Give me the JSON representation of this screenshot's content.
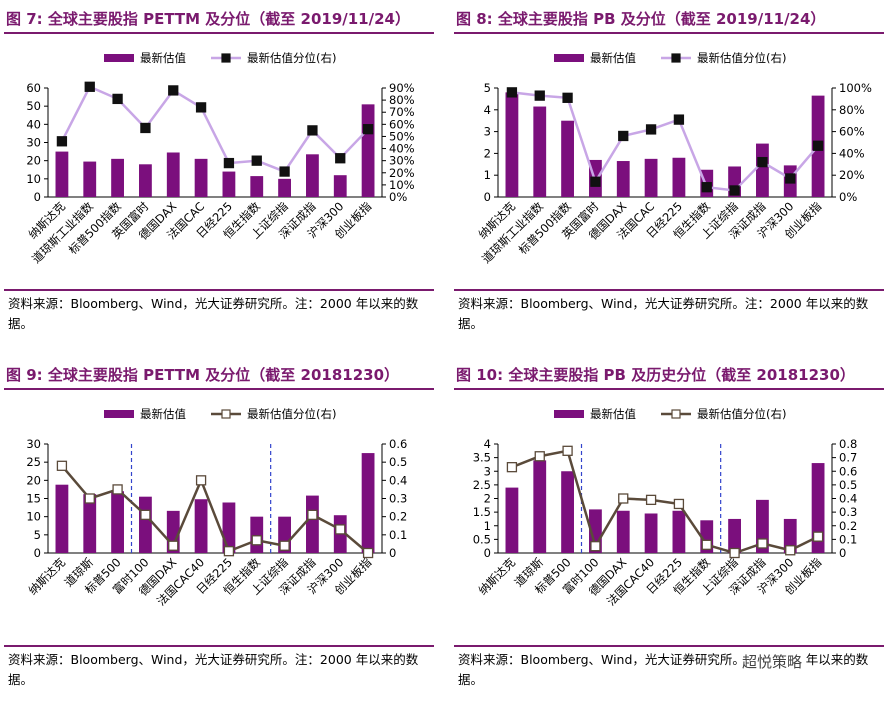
{
  "colors": {
    "accent": "#7a1a6e",
    "bar": "#7b0f7d",
    "line_light": "#c8a6e6",
    "line_dark": "#5a4a3a"
  },
  "watermark": "超悦策略",
  "panels": [
    {
      "title": "图 7: 全球主要股指 PETTM 及分位（截至 2019/11/24）",
      "source": "资料来源：Bloomberg、Wind，光大证券研究所。注：2000 年以来的数据。",
      "legend_bar": "最新估值",
      "legend_line": "最新估值分位(右)"
    },
    {
      "title": "图 8: 全球主要股指 PB 及分位（截至 2019/11/24）",
      "source": "资料来源：Bloomberg、Wind，光大证券研究所。注：2000 年以来的数据。",
      "legend_bar": "最新估值",
      "legend_line": "最新估值分位(右)"
    },
    {
      "title": "图 9: 全球主要股指 PETTM 及分位（截至 20181230）",
      "source": "资料来源：Bloomberg、Wind，光大证券研究所。注：2000 年以来的数据。",
      "legend_bar": "最新估值",
      "legend_line": "最新估值分位(右)"
    },
    {
      "title": "图 10: 全球主要股指 PB 及历史分位（截至 20181230）",
      "source": "资料来源：Bloomberg、Wind，光大证券研究所。注：2000 年以来的数据。",
      "legend_bar": "最新估值",
      "legend_line": "最新估值分位(右)"
    }
  ],
  "chart_data": [
    {
      "type": "bar",
      "categories": [
        "纳斯达克",
        "道琼斯工业指数",
        "标普500指数",
        "英国富时",
        "德国DAX",
        "法国CAC",
        "日经225",
        "恒生指数",
        "上证综指",
        "深证成指",
        "沪深300",
        "创业板指"
      ],
      "series": [
        {
          "name": "最新估值",
          "axis": "left",
          "values": [
            25,
            19.5,
            21,
            18,
            24.5,
            21,
            14,
            11.5,
            10,
            23.5,
            12,
            51
          ]
        },
        {
          "name": "最新估值分位(右)",
          "axis": "right",
          "type": "line",
          "values": [
            0.46,
            0.91,
            0.81,
            0.57,
            0.88,
            0.74,
            0.28,
            0.3,
            0.21,
            0.55,
            0.32,
            0.56
          ]
        }
      ],
      "ylim": [
        0,
        60
      ],
      "yticks": [
        0,
        10,
        20,
        30,
        40,
        50,
        60
      ],
      "y2lim": [
        0,
        0.9
      ],
      "y2ticks": [
        "0%",
        "10%",
        "20%",
        "30%",
        "40%",
        "50%",
        "60%",
        "70%",
        "80%",
        "90%"
      ],
      "legend": "top-center",
      "grid": false
    },
    {
      "type": "bar",
      "categories": [
        "纳斯达克",
        "道琼斯工业指数",
        "标普500指数",
        "英国富时",
        "德国DAX",
        "法国CAC",
        "日经225",
        "恒生指数",
        "上证综指",
        "深证成指",
        "沪深300",
        "创业板指"
      ],
      "series": [
        {
          "name": "最新估值",
          "axis": "left",
          "values": [
            4.8,
            4.15,
            3.5,
            1.7,
            1.65,
            1.75,
            1.8,
            1.25,
            1.4,
            2.45,
            1.45,
            4.65
          ]
        },
        {
          "name": "最新估值分位(右)",
          "axis": "right",
          "type": "line",
          "values": [
            0.96,
            0.93,
            0.91,
            0.14,
            0.56,
            0.62,
            0.71,
            0.09,
            0.06,
            0.32,
            0.17,
            0.47
          ]
        }
      ],
      "ylim": [
        0,
        5
      ],
      "yticks": [
        0,
        1,
        2,
        3,
        4,
        5
      ],
      "y2lim": [
        0,
        1.0
      ],
      "y2ticks": [
        "0%",
        "20%",
        "40%",
        "60%",
        "80%",
        "100%"
      ],
      "legend": "top-center",
      "grid": false
    },
    {
      "type": "bar",
      "categories": [
        "纳斯达克",
        "道琼斯",
        "标普500",
        "富时100",
        "德国DAX",
        "法国CAC40",
        "日经225",
        "恒生指数",
        "上证综指",
        "深证成指",
        "沪深300",
        "创业板指"
      ],
      "series": [
        {
          "name": "最新估值",
          "axis": "left",
          "values": [
            18.8,
            16.2,
            17.0,
            15.5,
            11.6,
            14.8,
            13.9,
            10.0,
            10.0,
            15.8,
            10.4,
            27.5
          ]
        },
        {
          "name": "最新估值分位(右)",
          "axis": "right",
          "type": "line",
          "values": [
            0.48,
            0.3,
            0.35,
            0.21,
            0.04,
            0.4,
            0.01,
            0.07,
            0.04,
            0.21,
            0.13,
            0.0
          ]
        }
      ],
      "ylim": [
        0,
        30
      ],
      "yticks": [
        0,
        5,
        10,
        15,
        20,
        25,
        30
      ],
      "y2lim": [
        0,
        0.6
      ],
      "y2ticks": [
        "0",
        "0.1",
        "0.2",
        "0.3",
        "0.4",
        "0.5",
        "0.6"
      ],
      "legend": "top-center",
      "grid": false
    },
    {
      "type": "bar",
      "categories": [
        "纳斯达克",
        "道琼斯",
        "标普500",
        "富时100",
        "德国DAX",
        "法国CAC40",
        "日经225",
        "恒生指数",
        "上证综指",
        "深证成指",
        "沪深300",
        "创业板指"
      ],
      "series": [
        {
          "name": "最新估值",
          "axis": "left",
          "values": [
            2.4,
            3.4,
            3.0,
            1.6,
            1.55,
            1.45,
            1.55,
            1.2,
            1.25,
            1.95,
            1.25,
            3.3
          ]
        },
        {
          "name": "最新估值分位(右)",
          "axis": "right",
          "type": "line",
          "values": [
            0.63,
            0.71,
            0.75,
            0.05,
            0.4,
            0.39,
            0.36,
            0.06,
            0.0,
            0.07,
            0.02,
            0.12
          ]
        }
      ],
      "ylim": [
        0,
        4
      ],
      "yticks": [
        0,
        0.5,
        1,
        1.5,
        2,
        2.5,
        3,
        3.5,
        4
      ],
      "y2lim": [
        0,
        0.8
      ],
      "y2ticks": [
        "0",
        "0.1",
        "0.2",
        "0.3",
        "0.4",
        "0.5",
        "0.6",
        "0.7",
        "0.8"
      ],
      "legend": "top-center",
      "grid": false
    }
  ]
}
